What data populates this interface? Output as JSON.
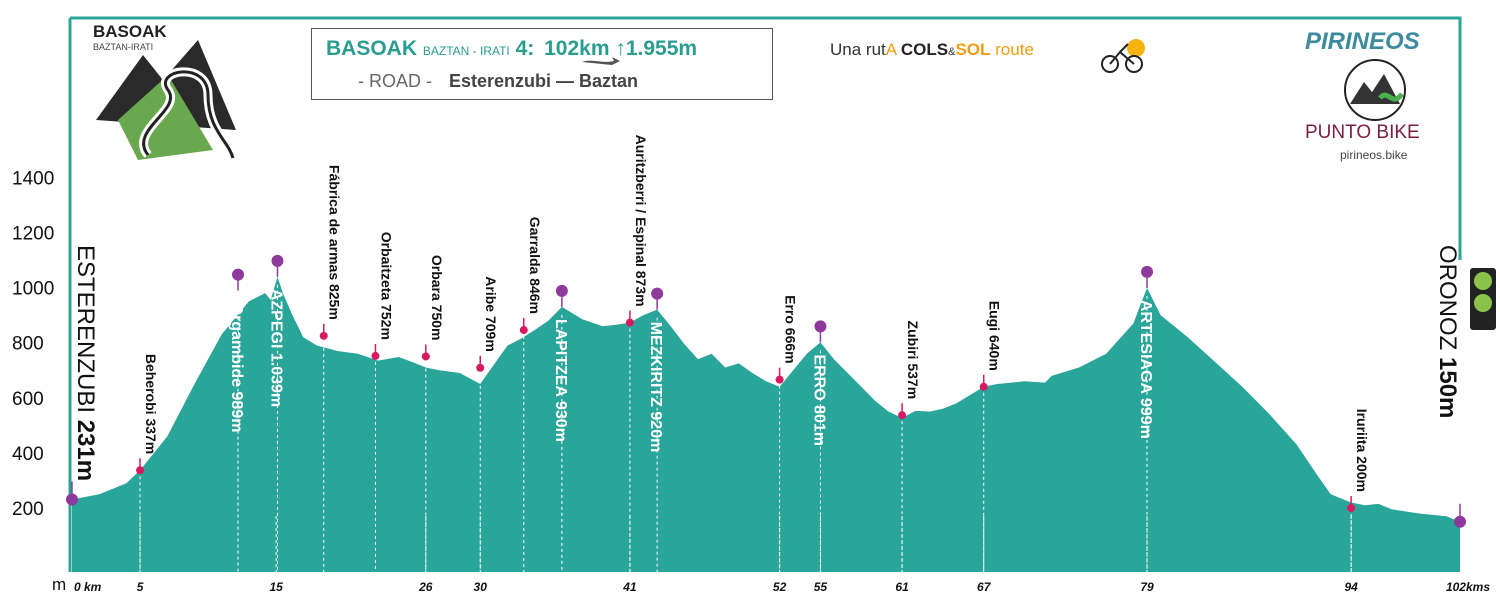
{
  "header": {
    "title_main": "BASOAK",
    "title_sub": "BAZTAN - IRATI",
    "title_num": "4:",
    "distance": "102km",
    "gain": "1.955m",
    "mode": "- ROAD -",
    "route": "Esterenzubi — Baztan"
  },
  "basoak_logo": {
    "title": "BASOAK",
    "subtitle": "BAZTAN-IRATI"
  },
  "cols_route": {
    "part1": "Una rut",
    "part2": "A",
    "part3": "COLS",
    "part4": "&",
    "part5": "SOL",
    "part6": " route"
  },
  "pirineos": {
    "title": "PIRINEOS",
    "brand": "PUNTO BIKE",
    "url": "pirineos.bike"
  },
  "colors": {
    "fill": "#2aa59a",
    "marker_summit": "#8e3a9d",
    "marker_point": "#d81b60",
    "title_teal": "#2a9d8f"
  },
  "chart_data": {
    "type": "area",
    "title": "",
    "xlabel": "",
    "ylabel": "m",
    "xlim": [
      0,
      102
    ],
    "ylim": [
      0,
      1400
    ],
    "y_ticks": [
      200,
      400,
      600,
      800,
      1000,
      1200,
      1400
    ],
    "x_ticks": [
      {
        "v": 0,
        "label": "0 km"
      },
      {
        "v": 5,
        "label": "5"
      },
      {
        "v": 15,
        "label": "15"
      },
      {
        "v": 26,
        "label": "26"
      },
      {
        "v": 30,
        "label": "30"
      },
      {
        "v": 41,
        "label": "41"
      },
      {
        "v": 52,
        "label": "52"
      },
      {
        "v": 55,
        "label": "55"
      },
      {
        "v": 61,
        "label": "61"
      },
      {
        "v": 67,
        "label": "67"
      },
      {
        "v": 79,
        "label": "79"
      },
      {
        "v": 94,
        "label": "94"
      },
      {
        "v": 102,
        "label": "102kms"
      }
    ],
    "profile": [
      [
        0,
        231
      ],
      [
        2,
        250
      ],
      [
        4,
        290
      ],
      [
        5,
        337
      ],
      [
        7,
        460
      ],
      [
        9,
        650
      ],
      [
        11,
        830
      ],
      [
        13,
        950
      ],
      [
        14.2,
        980
      ],
      [
        14.6,
        955
      ],
      [
        15.1,
        1039
      ],
      [
        15.5,
        980
      ],
      [
        16.2,
        900
      ],
      [
        17,
        820
      ],
      [
        18,
        790
      ],
      [
        19.5,
        770
      ],
      [
        21,
        760
      ],
      [
        22.5,
        735
      ],
      [
        24,
        748
      ],
      [
        25,
        730
      ],
      [
        26,
        710
      ],
      [
        27,
        700
      ],
      [
        28.5,
        690
      ],
      [
        30,
        650
      ],
      [
        31,
        720
      ],
      [
        32,
        790
      ],
      [
        33,
        815
      ],
      [
        34,
        846
      ],
      [
        35,
        880
      ],
      [
        36,
        930
      ],
      [
        37.5,
        885
      ],
      [
        39,
        860
      ],
      [
        40,
        865
      ],
      [
        41,
        873
      ],
      [
        42,
        900
      ],
      [
        43,
        920
      ],
      [
        44,
        860
      ],
      [
        45,
        795
      ],
      [
        46,
        740
      ],
      [
        47,
        760
      ],
      [
        48,
        710
      ],
      [
        49,
        725
      ],
      [
        50,
        690
      ],
      [
        51,
        660
      ],
      [
        52,
        640
      ],
      [
        53,
        700
      ],
      [
        54,
        760
      ],
      [
        55,
        801
      ],
      [
        56,
        740
      ],
      [
        57,
        690
      ],
      [
        58,
        640
      ],
      [
        59,
        590
      ],
      [
        60,
        550
      ],
      [
        61,
        527
      ],
      [
        62,
        553
      ],
      [
        63,
        550
      ],
      [
        64,
        560
      ],
      [
        65,
        580
      ],
      [
        66,
        610
      ],
      [
        67,
        640
      ],
      [
        68,
        650
      ],
      [
        70,
        660
      ],
      [
        71.5,
        655
      ],
      [
        72,
        680
      ],
      [
        74,
        710
      ],
      [
        76,
        760
      ],
      [
        78,
        870
      ],
      [
        79,
        999
      ],
      [
        80,
        900
      ],
      [
        82,
        820
      ],
      [
        84,
        730
      ],
      [
        86,
        640
      ],
      [
        88,
        540
      ],
      [
        90,
        430
      ],
      [
        91.5,
        320
      ],
      [
        92.5,
        250
      ],
      [
        94,
        220
      ],
      [
        95,
        210
      ],
      [
        96,
        215
      ],
      [
        97,
        195
      ],
      [
        99,
        180
      ],
      [
        101,
        170
      ],
      [
        102,
        150
      ]
    ],
    "summits": [
      {
        "km": 0,
        "alt": 231,
        "label": "ESTERENZUBI",
        "value": "231m",
        "side": "left"
      },
      {
        "km": 12.2,
        "alt": 989,
        "label": "Orgambide 989m"
      },
      {
        "km": 15.1,
        "alt": 1039,
        "label": "AZPEGI 1.039m"
      },
      {
        "km": 36,
        "alt": 930,
        "label": "LAPITZEA 930m"
      },
      {
        "km": 43,
        "alt": 920,
        "label": "MEZKIRITZ 920m"
      },
      {
        "km": 55,
        "alt": 801,
        "label": "ERRO 801m"
      },
      {
        "km": 79,
        "alt": 999,
        "label": "ARTESIAGA 999m"
      },
      {
        "km": 102,
        "alt": 150,
        "label": "ORONOZ",
        "value": "150m",
        "side": "right"
      }
    ],
    "points": [
      {
        "km": 5,
        "alt": 337,
        "label": "Beherobi 337m"
      },
      {
        "km": 18.5,
        "alt": 825,
        "label": "Fábrica de armas 825m"
      },
      {
        "km": 22.3,
        "alt": 752,
        "label": "Orbaitzeta 752m"
      },
      {
        "km": 26,
        "alt": 750,
        "label": "Orbara 750m"
      },
      {
        "km": 30,
        "alt": 709,
        "label": "Aribe 709m"
      },
      {
        "km": 33.2,
        "alt": 846,
        "label": "Garralda 846m"
      },
      {
        "km": 41,
        "alt": 873,
        "label": "Auritzberri / Espinal 873m"
      },
      {
        "km": 52,
        "alt": 666,
        "label": "Erro 666m"
      },
      {
        "km": 61,
        "alt": 537,
        "label": "Zubiri 537m"
      },
      {
        "km": 67,
        "alt": 640,
        "label": "Eugi 640m"
      },
      {
        "km": 94,
        "alt": 200,
        "label": "Iruriita 200m"
      }
    ]
  }
}
